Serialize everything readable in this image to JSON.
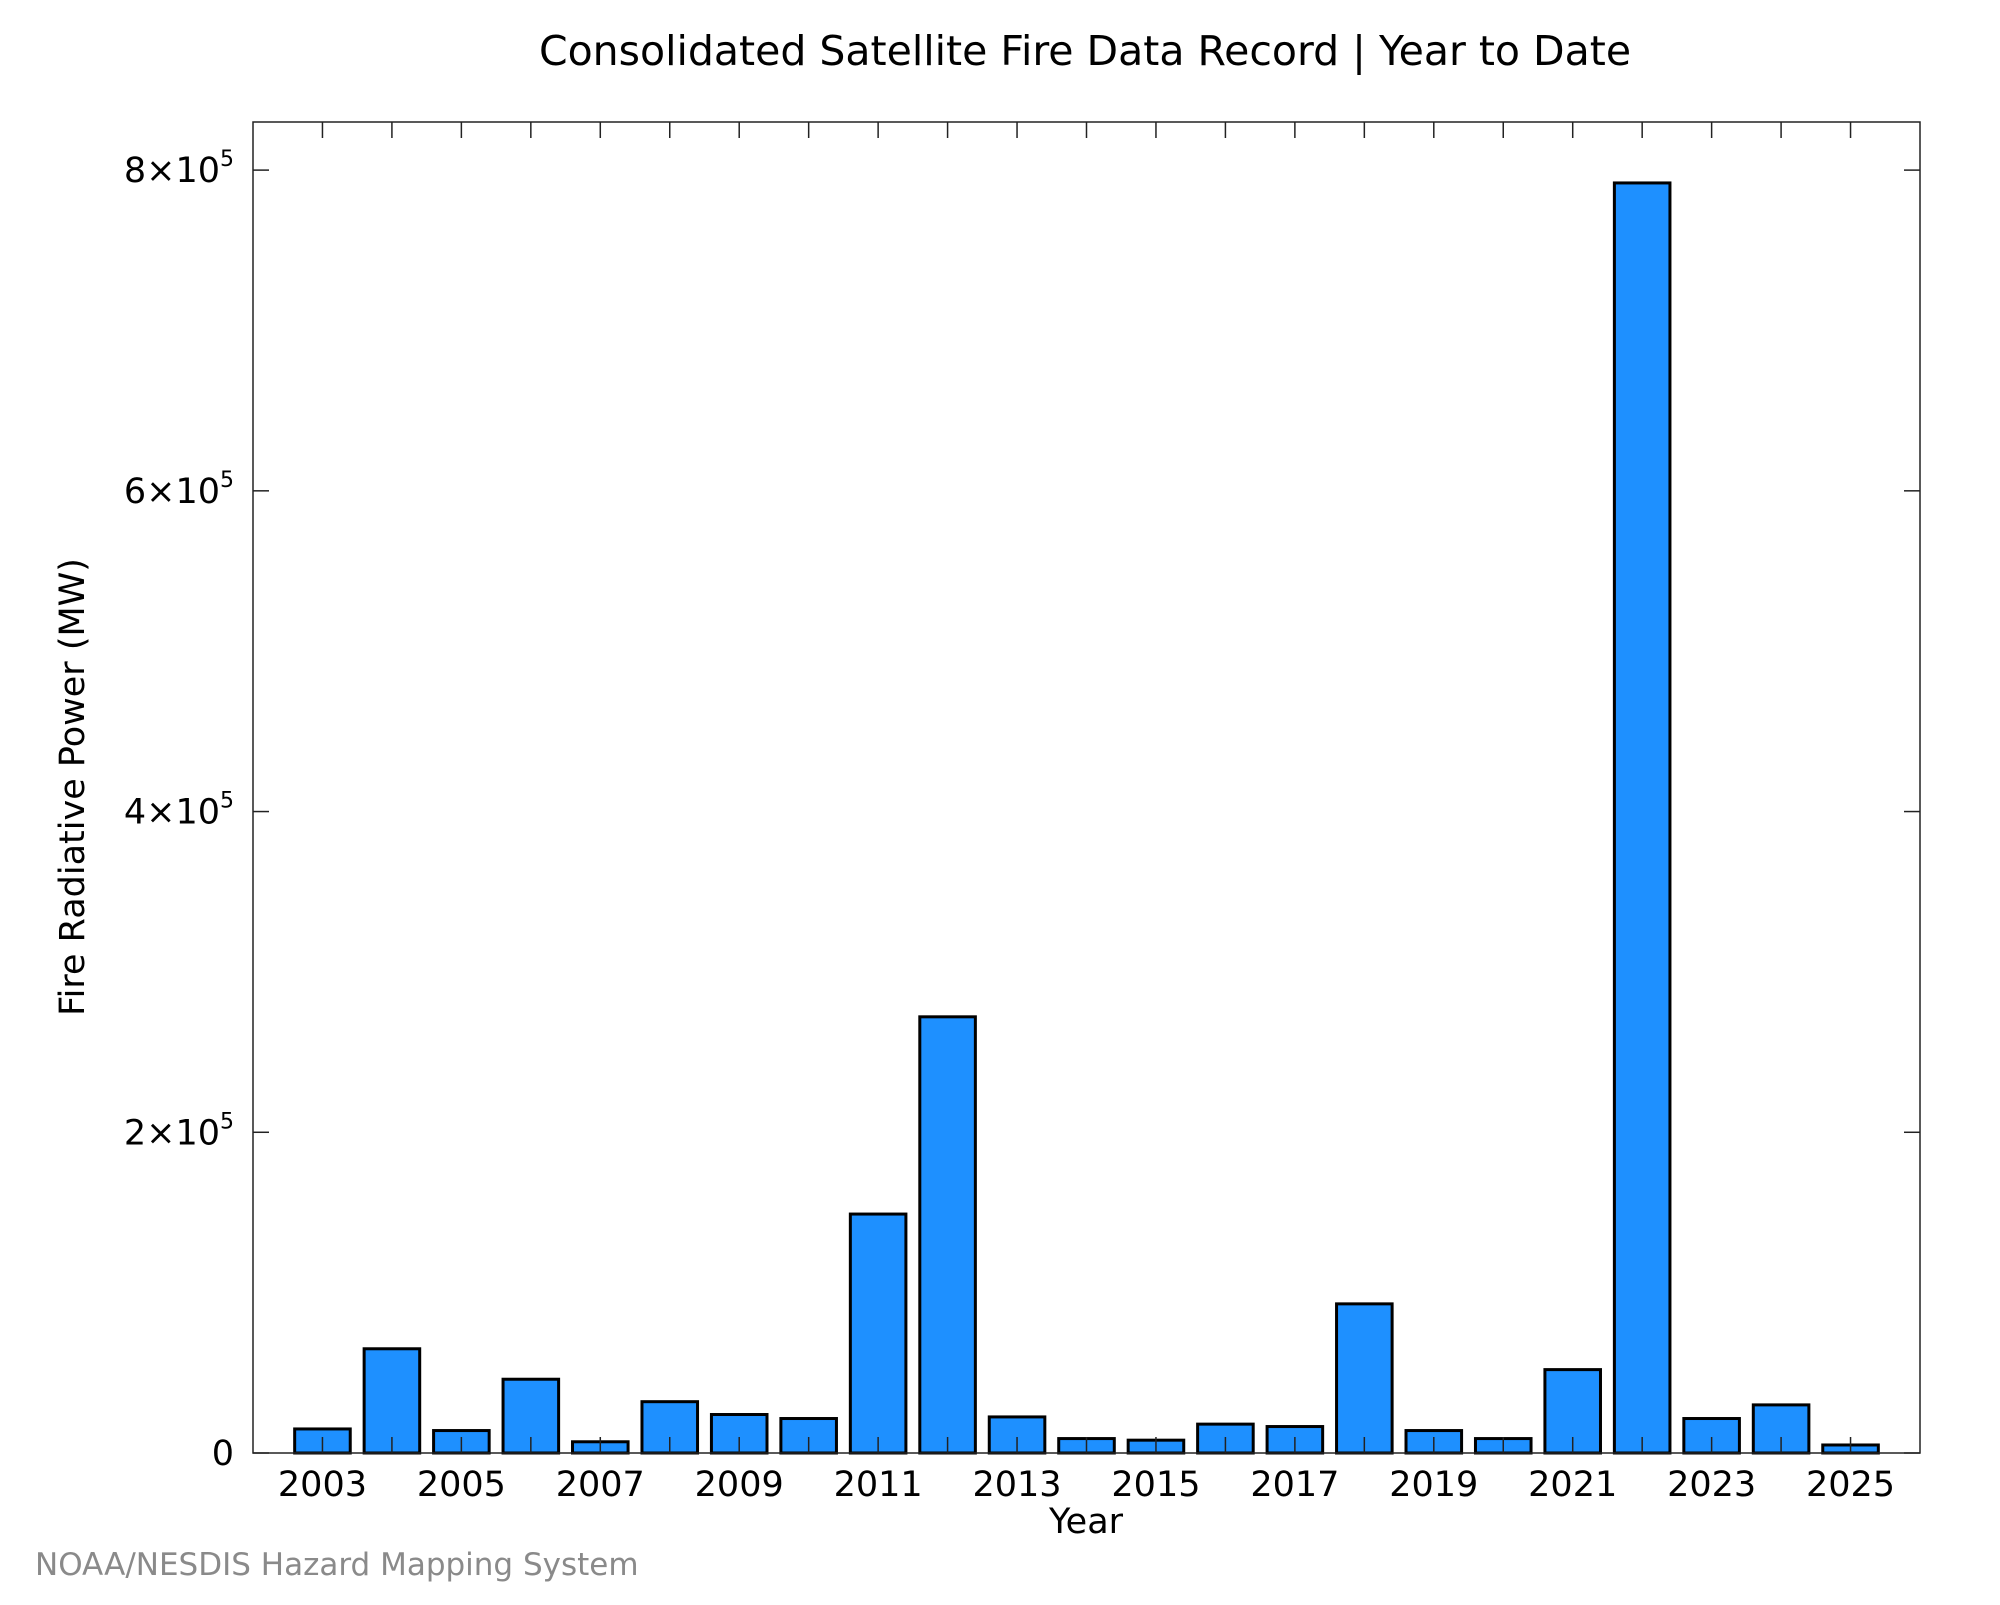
{
  "colors": {
    "bar_fill": "#1e90ff",
    "bar_edge": "#000000",
    "credit_text": "#8a8a8a"
  },
  "credit": "NOAA/NESDIS Hazard Mapping System",
  "chart_data": {
    "type": "bar",
    "title": "Consolidated Satellite Fire Data Record | Year to Date",
    "xlabel": "Year",
    "ylabel": "Fire Radiative Power (MW)",
    "categories": [
      "2003",
      "2004",
      "2005",
      "2006",
      "2007",
      "2008",
      "2009",
      "2010",
      "2011",
      "2012",
      "2013",
      "2014",
      "2015",
      "2016",
      "2017",
      "2018",
      "2019",
      "2020",
      "2021",
      "2022",
      "2023",
      "2024",
      "2025"
    ],
    "values": [
      15000,
      65000,
      14000,
      46000,
      7000,
      32000,
      24000,
      21500,
      149000,
      272000,
      22500,
      9000,
      8000,
      18000,
      16500,
      93000,
      14000,
      9000,
      52000,
      792000,
      21500,
      30000,
      5000
    ],
    "x_tick_labels": [
      "2003",
      "2005",
      "2007",
      "2009",
      "2011",
      "2013",
      "2015",
      "2017",
      "2019",
      "2021",
      "2023",
      "2025"
    ],
    "y_ticks": [
      {
        "value": 0,
        "base": "0",
        "exp": ""
      },
      {
        "value": 200000,
        "base": "2×10",
        "exp": "5"
      },
      {
        "value": 400000,
        "base": "4×10",
        "exp": "5"
      },
      {
        "value": 600000,
        "base": "6×10",
        "exp": "5"
      },
      {
        "value": 800000,
        "base": "8×10",
        "exp": "5"
      }
    ],
    "ylim": [
      0,
      830000
    ],
    "xlim": [
      2002.0,
      2026.0
    ],
    "grid": false,
    "legend": "none"
  }
}
